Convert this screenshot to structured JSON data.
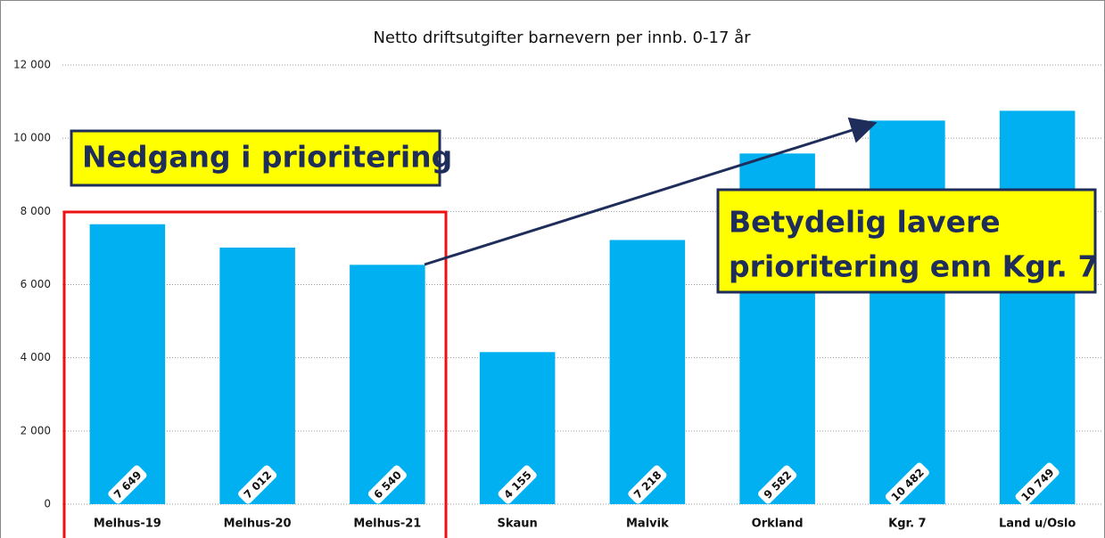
{
  "chart_data": {
    "type": "bar",
    "title": "Netto driftsutgifter barnevern per innb. 0-17 år",
    "categories": [
      "Melhus-19",
      "Melhus-20",
      "Melhus-21",
      "Skaun",
      "Malvik",
      "Orkland",
      "Kgr. 7",
      "Land u/Oslo"
    ],
    "values": [
      7649,
      7012,
      6540,
      4155,
      7218,
      9582,
      10482,
      10749
    ],
    "value_labels": [
      "7 649",
      "7 012",
      "6 540",
      "4 155",
      "7 218",
      "9 582",
      "10 482",
      "10 749"
    ],
    "color": "#00b0f0",
    "ylim": [
      0,
      12000
    ],
    "yticks": [
      0,
      {
        "value": 2000,
        "label": "2 000"
      },
      {
        "value": 4000,
        "label": "4 000"
      },
      {
        "value": 6000,
        "label": "6 000"
      },
      {
        "value": 8000,
        "label": "8 000"
      },
      {
        "value": 10000,
        "label": "10 000"
      },
      {
        "value": 12000,
        "label": "12 000"
      }
    ],
    "grid": true,
    "annotations": [
      {
        "lines": [
          "Nedgang i prioritering"
        ]
      },
      {
        "lines": [
          "Betydelig lavere",
          "prioritering enn Kgr. 7"
        ]
      }
    ]
  }
}
